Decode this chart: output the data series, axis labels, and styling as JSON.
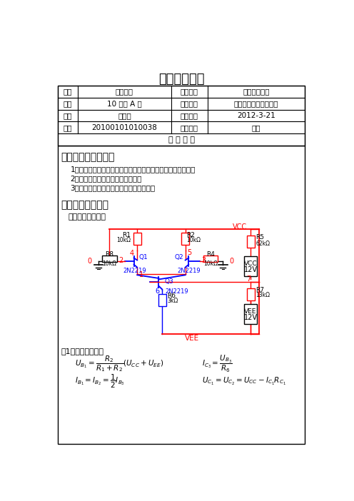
{
  "title": "学生实验报告",
  "table_rows": [
    [
      "系别",
      "电子工程",
      "课程名称",
      "电子技术实验"
    ],
    [
      "班级",
      "10 通信 A 班",
      "实验名称",
      "恒流源式差动放大电路"
    ],
    [
      "姓名",
      "蔡汉再",
      "实验时间",
      "2012-3-21"
    ],
    [
      "学号",
      "20100101010038",
      "指导教师",
      "文毅"
    ]
  ],
  "report_content_label": "报 告 内 容",
  "section1_title": "一、实验目的和任务",
  "section1_items": [
    "1、加深对差动放大电路的工作原理、分析方法的理解与掌握；",
    "2、学习差动放大电路的测试方法；",
    "3、了解恒流源在差动放大电路中的作用。"
  ],
  "section2_title": "二、实验原理介绍",
  "section2_intro": "实验原理图如下：",
  "static_label": "（1）静态工作点：",
  "bg_color": "#ffffff",
  "RED": "#FF0000",
  "BLUE": "#0000FF",
  "BLACK": "#000000"
}
